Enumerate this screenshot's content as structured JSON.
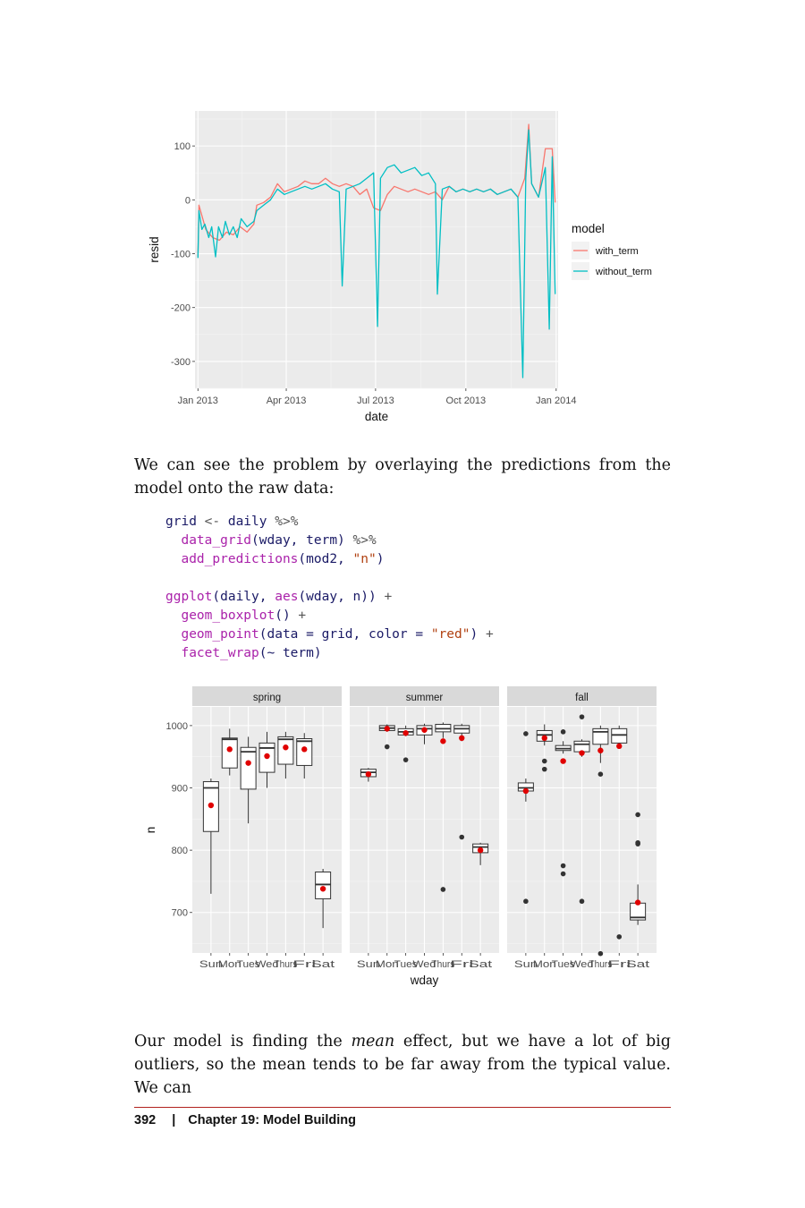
{
  "chart_data": [
    {
      "type": "line",
      "xlabel": "date",
      "ylabel": "resid",
      "x_ticks": [
        "Jan 2013",
        "Apr 2013",
        "Jul 2013",
        "Oct 2013",
        "Jan 2014"
      ],
      "y_ticks": [
        100,
        0,
        -100,
        -200,
        -300
      ],
      "ylim": [
        -350,
        165
      ],
      "grid": true,
      "legend": {
        "title": "model",
        "position": "right"
      },
      "series": [
        {
          "name": "with_term",
          "color": "#F8766D",
          "points": [
            [
              "2013-01-01",
              -105
            ],
            [
              "2013-01-02",
              -10
            ],
            [
              "2013-01-09",
              -55
            ],
            [
              "2013-01-16",
              -70
            ],
            [
              "2013-01-23",
              -75
            ],
            [
              "2013-01-30",
              -60
            ],
            [
              "2013-02-06",
              -65
            ],
            [
              "2013-02-13",
              -50
            ],
            [
              "2013-02-20",
              -60
            ],
            [
              "2013-02-27",
              -45
            ],
            [
              "2013-03-02",
              -10
            ],
            [
              "2013-03-09",
              -5
            ],
            [
              "2013-03-16",
              5
            ],
            [
              "2013-03-23",
              30
            ],
            [
              "2013-03-30",
              15
            ],
            [
              "2013-04-06",
              20
            ],
            [
              "2013-04-13",
              25
            ],
            [
              "2013-04-20",
              35
            ],
            [
              "2013-04-27",
              30
            ],
            [
              "2013-05-04",
              30
            ],
            [
              "2013-05-11",
              40
            ],
            [
              "2013-05-18",
              30
            ],
            [
              "2013-05-25",
              25
            ],
            [
              "2013-06-01",
              30
            ],
            [
              "2013-06-08",
              25
            ],
            [
              "2013-06-15",
              10
            ],
            [
              "2013-06-22",
              20
            ],
            [
              "2013-06-29",
              -15
            ],
            [
              "2013-07-06",
              -20
            ],
            [
              "2013-07-13",
              10
            ],
            [
              "2013-07-20",
              25
            ],
            [
              "2013-07-27",
              20
            ],
            [
              "2013-08-03",
              15
            ],
            [
              "2013-08-10",
              20
            ],
            [
              "2013-08-17",
              15
            ],
            [
              "2013-08-24",
              10
            ],
            [
              "2013-08-31",
              15
            ],
            [
              "2013-09-07",
              0
            ],
            [
              "2013-09-14",
              25
            ],
            [
              "2013-09-21",
              15
            ],
            [
              "2013-09-28",
              20
            ],
            [
              "2013-10-05",
              15
            ],
            [
              "2013-10-12",
              20
            ],
            [
              "2013-10-19",
              15
            ],
            [
              "2013-10-26",
              20
            ],
            [
              "2013-11-02",
              10
            ],
            [
              "2013-11-09",
              15
            ],
            [
              "2013-11-16",
              20
            ],
            [
              "2013-11-23",
              5
            ],
            [
              "2013-11-30",
              40
            ],
            [
              "2013-12-04",
              140
            ],
            [
              "2013-12-07",
              30
            ],
            [
              "2013-12-14",
              5
            ],
            [
              "2013-12-21",
              95
            ],
            [
              "2013-12-28",
              95
            ],
            [
              "2013-12-31",
              -5
            ]
          ]
        },
        {
          "name": "without_term",
          "color": "#00BFC4",
          "points": [
            [
              "2013-01-01",
              -108
            ],
            [
              "2013-01-02",
              -20
            ],
            [
              "2013-01-05",
              -55
            ],
            [
              "2013-01-08",
              -45
            ],
            [
              "2013-01-12",
              -70
            ],
            [
              "2013-01-15",
              -50
            ],
            [
              "2013-01-19",
              -106
            ],
            [
              "2013-01-22",
              -50
            ],
            [
              "2013-01-26",
              -70
            ],
            [
              "2013-01-29",
              -40
            ],
            [
              "2013-02-02",
              -65
            ],
            [
              "2013-02-06",
              -50
            ],
            [
              "2013-02-10",
              -70
            ],
            [
              "2013-02-14",
              -35
            ],
            [
              "2013-02-20",
              -50
            ],
            [
              "2013-02-27",
              -40
            ],
            [
              "2013-03-02",
              -20
            ],
            [
              "2013-03-09",
              -10
            ],
            [
              "2013-03-16",
              0
            ],
            [
              "2013-03-23",
              20
            ],
            [
              "2013-03-30",
              10
            ],
            [
              "2013-04-06",
              15
            ],
            [
              "2013-04-13",
              20
            ],
            [
              "2013-04-20",
              25
            ],
            [
              "2013-04-27",
              20
            ],
            [
              "2013-05-04",
              25
            ],
            [
              "2013-05-11",
              30
            ],
            [
              "2013-05-18",
              20
            ],
            [
              "2013-05-25",
              15
            ],
            [
              "2013-05-28",
              -160
            ],
            [
              "2013-06-01",
              20
            ],
            [
              "2013-06-08",
              25
            ],
            [
              "2013-06-15",
              30
            ],
            [
              "2013-06-22",
              40
            ],
            [
              "2013-06-29",
              50
            ],
            [
              "2013-07-03",
              -235
            ],
            [
              "2013-07-06",
              40
            ],
            [
              "2013-07-13",
              60
            ],
            [
              "2013-07-20",
              65
            ],
            [
              "2013-07-27",
              50
            ],
            [
              "2013-08-03",
              55
            ],
            [
              "2013-08-10",
              60
            ],
            [
              "2013-08-17",
              45
            ],
            [
              "2013-08-24",
              50
            ],
            [
              "2013-08-31",
              30
            ],
            [
              "2013-09-02",
              -175
            ],
            [
              "2013-09-07",
              20
            ],
            [
              "2013-09-14",
              25
            ],
            [
              "2013-09-21",
              15
            ],
            [
              "2013-09-28",
              20
            ],
            [
              "2013-10-05",
              15
            ],
            [
              "2013-10-12",
              20
            ],
            [
              "2013-10-19",
              15
            ],
            [
              "2013-10-26",
              20
            ],
            [
              "2013-11-02",
              10
            ],
            [
              "2013-11-09",
              15
            ],
            [
              "2013-11-16",
              20
            ],
            [
              "2013-11-23",
              5
            ],
            [
              "2013-11-28",
              -330
            ],
            [
              "2013-12-01",
              40
            ],
            [
              "2013-12-04",
              130
            ],
            [
              "2013-12-07",
              30
            ],
            [
              "2013-12-14",
              5
            ],
            [
              "2013-12-21",
              60
            ],
            [
              "2013-12-25",
              -240
            ],
            [
              "2013-12-28",
              80
            ],
            [
              "2013-12-31",
              -175
            ]
          ]
        }
      ]
    },
    {
      "type": "boxplot",
      "xlabel": "wday",
      "ylabel": "n",
      "y_ticks": [
        700,
        800,
        900,
        1000
      ],
      "ylim": [
        635,
        1030
      ],
      "grid": true,
      "categories": [
        "Sun",
        "Mon",
        "Tues",
        "Wed",
        "Thurs",
        "Fri",
        "Sat"
      ],
      "prediction_color": "#E00000",
      "panels": [
        {
          "name": "spring",
          "boxes": [
            {
              "lw": 730,
              "q1": 830,
              "med": 900,
              "q3": 910,
              "uw": 915,
              "outliers": [],
              "pred": 872
            },
            {
              "lw": 920,
              "q1": 932,
              "med": 978,
              "q3": 980,
              "uw": 995,
              "outliers": [],
              "pred": 962
            },
            {
              "lw": 843,
              "q1": 898,
              "med": 958,
              "q3": 965,
              "uw": 982,
              "outliers": [],
              "pred": 940
            },
            {
              "lw": 900,
              "q1": 925,
              "med": 964,
              "q3": 972,
              "uw": 990,
              "outliers": [],
              "pred": 951
            },
            {
              "lw": 915,
              "q1": 938,
              "med": 978,
              "q3": 982,
              "uw": 990,
              "outliers": [],
              "pred": 965
            },
            {
              "lw": 915,
              "q1": 936,
              "med": 975,
              "q3": 979,
              "uw": 988,
              "outliers": [],
              "pred": 962
            },
            {
              "lw": 675,
              "q1": 722,
              "med": 745,
              "q3": 765,
              "uw": 770,
              "outliers": [],
              "pred": 738
            }
          ]
        },
        {
          "name": "summer",
          "boxes": [
            {
              "lw": 910,
              "q1": 918,
              "med": 925,
              "q3": 930,
              "uw": 932,
              "outliers": [],
              "pred": 922
            },
            {
              "lw": 990,
              "q1": 992,
              "med": 996,
              "q3": 1000,
              "uw": 1002,
              "outliers": [
                966
              ],
              "pred": 995
            },
            {
              "lw": 983,
              "q1": 985,
              "med": 990,
              "q3": 995,
              "uw": 1000,
              "outliers": [
                945
              ],
              "pred": 988
            },
            {
              "lw": 970,
              "q1": 985,
              "med": 995,
              "q3": 1000,
              "uw": 1003,
              "outliers": [],
              "pred": 993
            },
            {
              "lw": 980,
              "q1": 990,
              "med": 995,
              "q3": 1002,
              "uw": 1005,
              "outliers": [
                737
              ],
              "pred": 975
            },
            {
              "lw": 975,
              "q1": 988,
              "med": 995,
              "q3": 1000,
              "uw": 1003,
              "outliers": [
                821
              ],
              "pred": 980
            },
            {
              "lw": 776,
              "q1": 796,
              "med": 805,
              "q3": 810,
              "uw": 812,
              "outliers": [],
              "pred": 800
            }
          ]
        },
        {
          "name": "fall",
          "boxes": [
            {
              "lw": 878,
              "q1": 895,
              "med": 900,
              "q3": 908,
              "uw": 915,
              "outliers": [
                718,
                987
              ],
              "pred": 895
            },
            {
              "lw": 968,
              "q1": 975,
              "med": 985,
              "q3": 992,
              "uw": 1002,
              "outliers": [
                930,
                943
              ],
              "pred": 980
            },
            {
              "lw": 955,
              "q1": 960,
              "med": 963,
              "q3": 968,
              "uw": 975,
              "outliers": [
                990,
                775,
                762
              ],
              "pred": 943
            },
            {
              "lw": 950,
              "q1": 958,
              "med": 970,
              "q3": 975,
              "uw": 978,
              "outliers": [
                1014,
                718
              ],
              "pred": 956
            },
            {
              "lw": 940,
              "q1": 970,
              "med": 990,
              "q3": 995,
              "uw": 1000,
              "outliers": [
                922,
                634
              ],
              "pred": 960
            },
            {
              "lw": 965,
              "q1": 972,
              "med": 985,
              "q3": 995,
              "uw": 1000,
              "outliers": [
                661
              ],
              "pred": 967
            },
            {
              "lw": 680,
              "q1": 688,
              "med": 692,
              "q3": 715,
              "uw": 745,
              "outliers": [
                857,
                812,
                810
              ],
              "pred": 716
            }
          ]
        }
      ]
    }
  ],
  "text": {
    "para1": "We can see the problem by overlaying the predictions from the model onto the raw data:",
    "para2_before": "Our model is finding the ",
    "para2_em": "mean",
    "para2_after": " effect, but we have a lot of big outliers, so the mean tends to be far away from the typical value. We can"
  },
  "code": {
    "l1_a": "grid",
    "l1_b": " <- ",
    "l1_c": "daily",
    "l1_d": " %>%",
    "l2_fn": "  data_grid",
    "l2_rest": "(wday, term)",
    "l2_op": " %>%",
    "l3_fn": "  add_predictions",
    "l3_rest": "(mod2, ",
    "l3_str": "\"n\"",
    "l3_end": ")",
    "l5_fn": "ggplot",
    "l5_a": "(daily, ",
    "l5_fn2": "aes",
    "l5_b": "(wday, n))",
    "l5_op": " +",
    "l6_fn": "  geom_boxplot",
    "l6_a": "()",
    "l6_op": " +",
    "l7_fn": "  geom_point",
    "l7_a": "(data = grid, color = ",
    "l7_str": "\"red\"",
    "l7_b": ")",
    "l7_op": " +",
    "l8_fn": "  facet_wrap",
    "l8_a": "(~ term)"
  },
  "footer": {
    "page_number": "392",
    "separator": "|",
    "chapter": "Chapter 19: Model Building"
  }
}
